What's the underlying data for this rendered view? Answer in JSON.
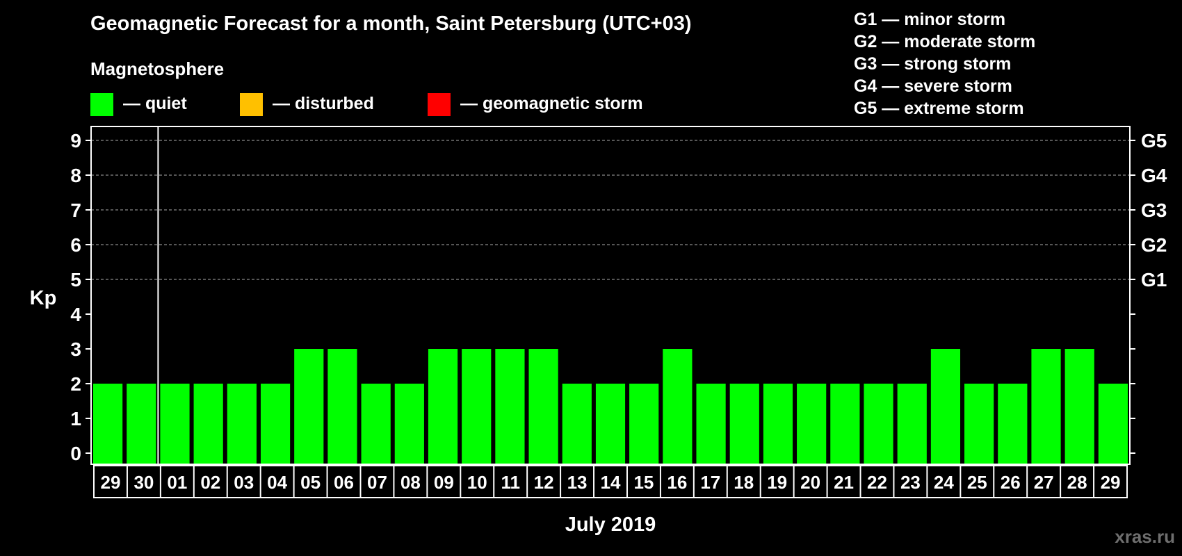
{
  "header": {
    "title": "Geomagnetic Forecast for a month, Saint Petersburg (UTC+03)",
    "subtitle": "Magnetosphere"
  },
  "legend": [
    {
      "label": "— quiet",
      "color": "#00ff00"
    },
    {
      "label": "— disturbed",
      "color": "#ffc000"
    },
    {
      "label": "— geomagnetic storm",
      "color": "#ff0000"
    }
  ],
  "storm_levels": [
    "G1 — minor storm",
    "G2 — moderate storm",
    "G3 — strong storm",
    "G4 — severe storm",
    "G5 — extreme storm"
  ],
  "watermark": "xras.ru",
  "chart_data": {
    "type": "bar",
    "title": "Geomagnetic Forecast for a month, Saint Petersburg (UTC+03)",
    "xlabel": "July 2019",
    "ylabel": "Kp",
    "ylim": [
      0,
      9
    ],
    "yticks": [
      "0",
      "1",
      "2",
      "3",
      "4",
      "5",
      "6",
      "7",
      "8",
      "9"
    ],
    "right_ticks": [
      {
        "value": 5,
        "label": "G1"
      },
      {
        "value": 6,
        "label": "G2"
      },
      {
        "value": 7,
        "label": "G3"
      },
      {
        "value": 8,
        "label": "G4"
      },
      {
        "value": 9,
        "label": "G5"
      }
    ],
    "grid": "dashed horizontal at 5-9",
    "categories": [
      "29",
      "30",
      "01",
      "02",
      "03",
      "04",
      "05",
      "06",
      "07",
      "08",
      "09",
      "10",
      "11",
      "12",
      "13",
      "14",
      "15",
      "16",
      "17",
      "18",
      "19",
      "20",
      "21",
      "22",
      "23",
      "24",
      "25",
      "26",
      "27",
      "28",
      "29"
    ],
    "values": [
      2,
      2,
      2,
      2,
      2,
      2,
      3,
      3,
      2,
      2,
      3,
      3,
      3,
      3,
      2,
      2,
      2,
      3,
      2,
      2,
      2,
      2,
      2,
      2,
      2,
      3,
      2,
      2,
      3,
      3,
      2
    ],
    "bar_color": "#00ff00",
    "month_divider_after_index": 1
  }
}
